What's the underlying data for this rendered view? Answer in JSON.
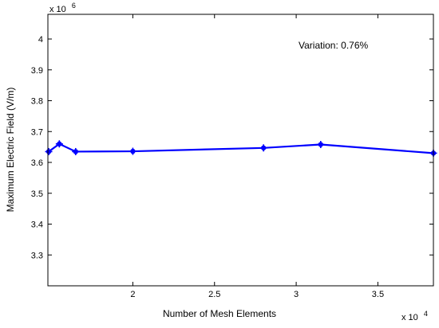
{
  "chart_data": {
    "type": "line",
    "title": "",
    "xlabel": "Number of Mesh Elements",
    "ylabel": "Maximum Electric Field (V/m)",
    "x_multiplier": {
      "base": "x 10",
      "exponent": "4"
    },
    "y_multiplier": {
      "base": "x 10",
      "exponent": "6"
    },
    "xlim": [
      14800,
      38400
    ],
    "ylim": [
      3200000,
      4080000
    ],
    "xticks": [
      {
        "value": 20000,
        "label": "2"
      },
      {
        "value": 25000,
        "label": "2.5"
      },
      {
        "value": 30000,
        "label": "3"
      },
      {
        "value": 35000,
        "label": "3.5"
      }
    ],
    "yticks": [
      {
        "value": 3300000,
        "label": "3.3"
      },
      {
        "value": 3400000,
        "label": "3.4"
      },
      {
        "value": 3500000,
        "label": "3.5"
      },
      {
        "value": 3600000,
        "label": "3.6"
      },
      {
        "value": 3700000,
        "label": "3.7"
      },
      {
        "value": 3800000,
        "label": "3.8"
      },
      {
        "value": 3900000,
        "label": "3.9"
      },
      {
        "value": 4000000,
        "label": "4"
      }
    ],
    "grid": false,
    "annotation": "Variation: 0.76%",
    "series": [
      {
        "color": "#0000ff",
        "x": [
          14850,
          15500,
          16500,
          20000,
          28000,
          31500,
          38400
        ],
        "y": [
          3635000,
          3660000,
          3635000,
          3636000,
          3647000,
          3658000,
          3630000
        ]
      }
    ]
  }
}
